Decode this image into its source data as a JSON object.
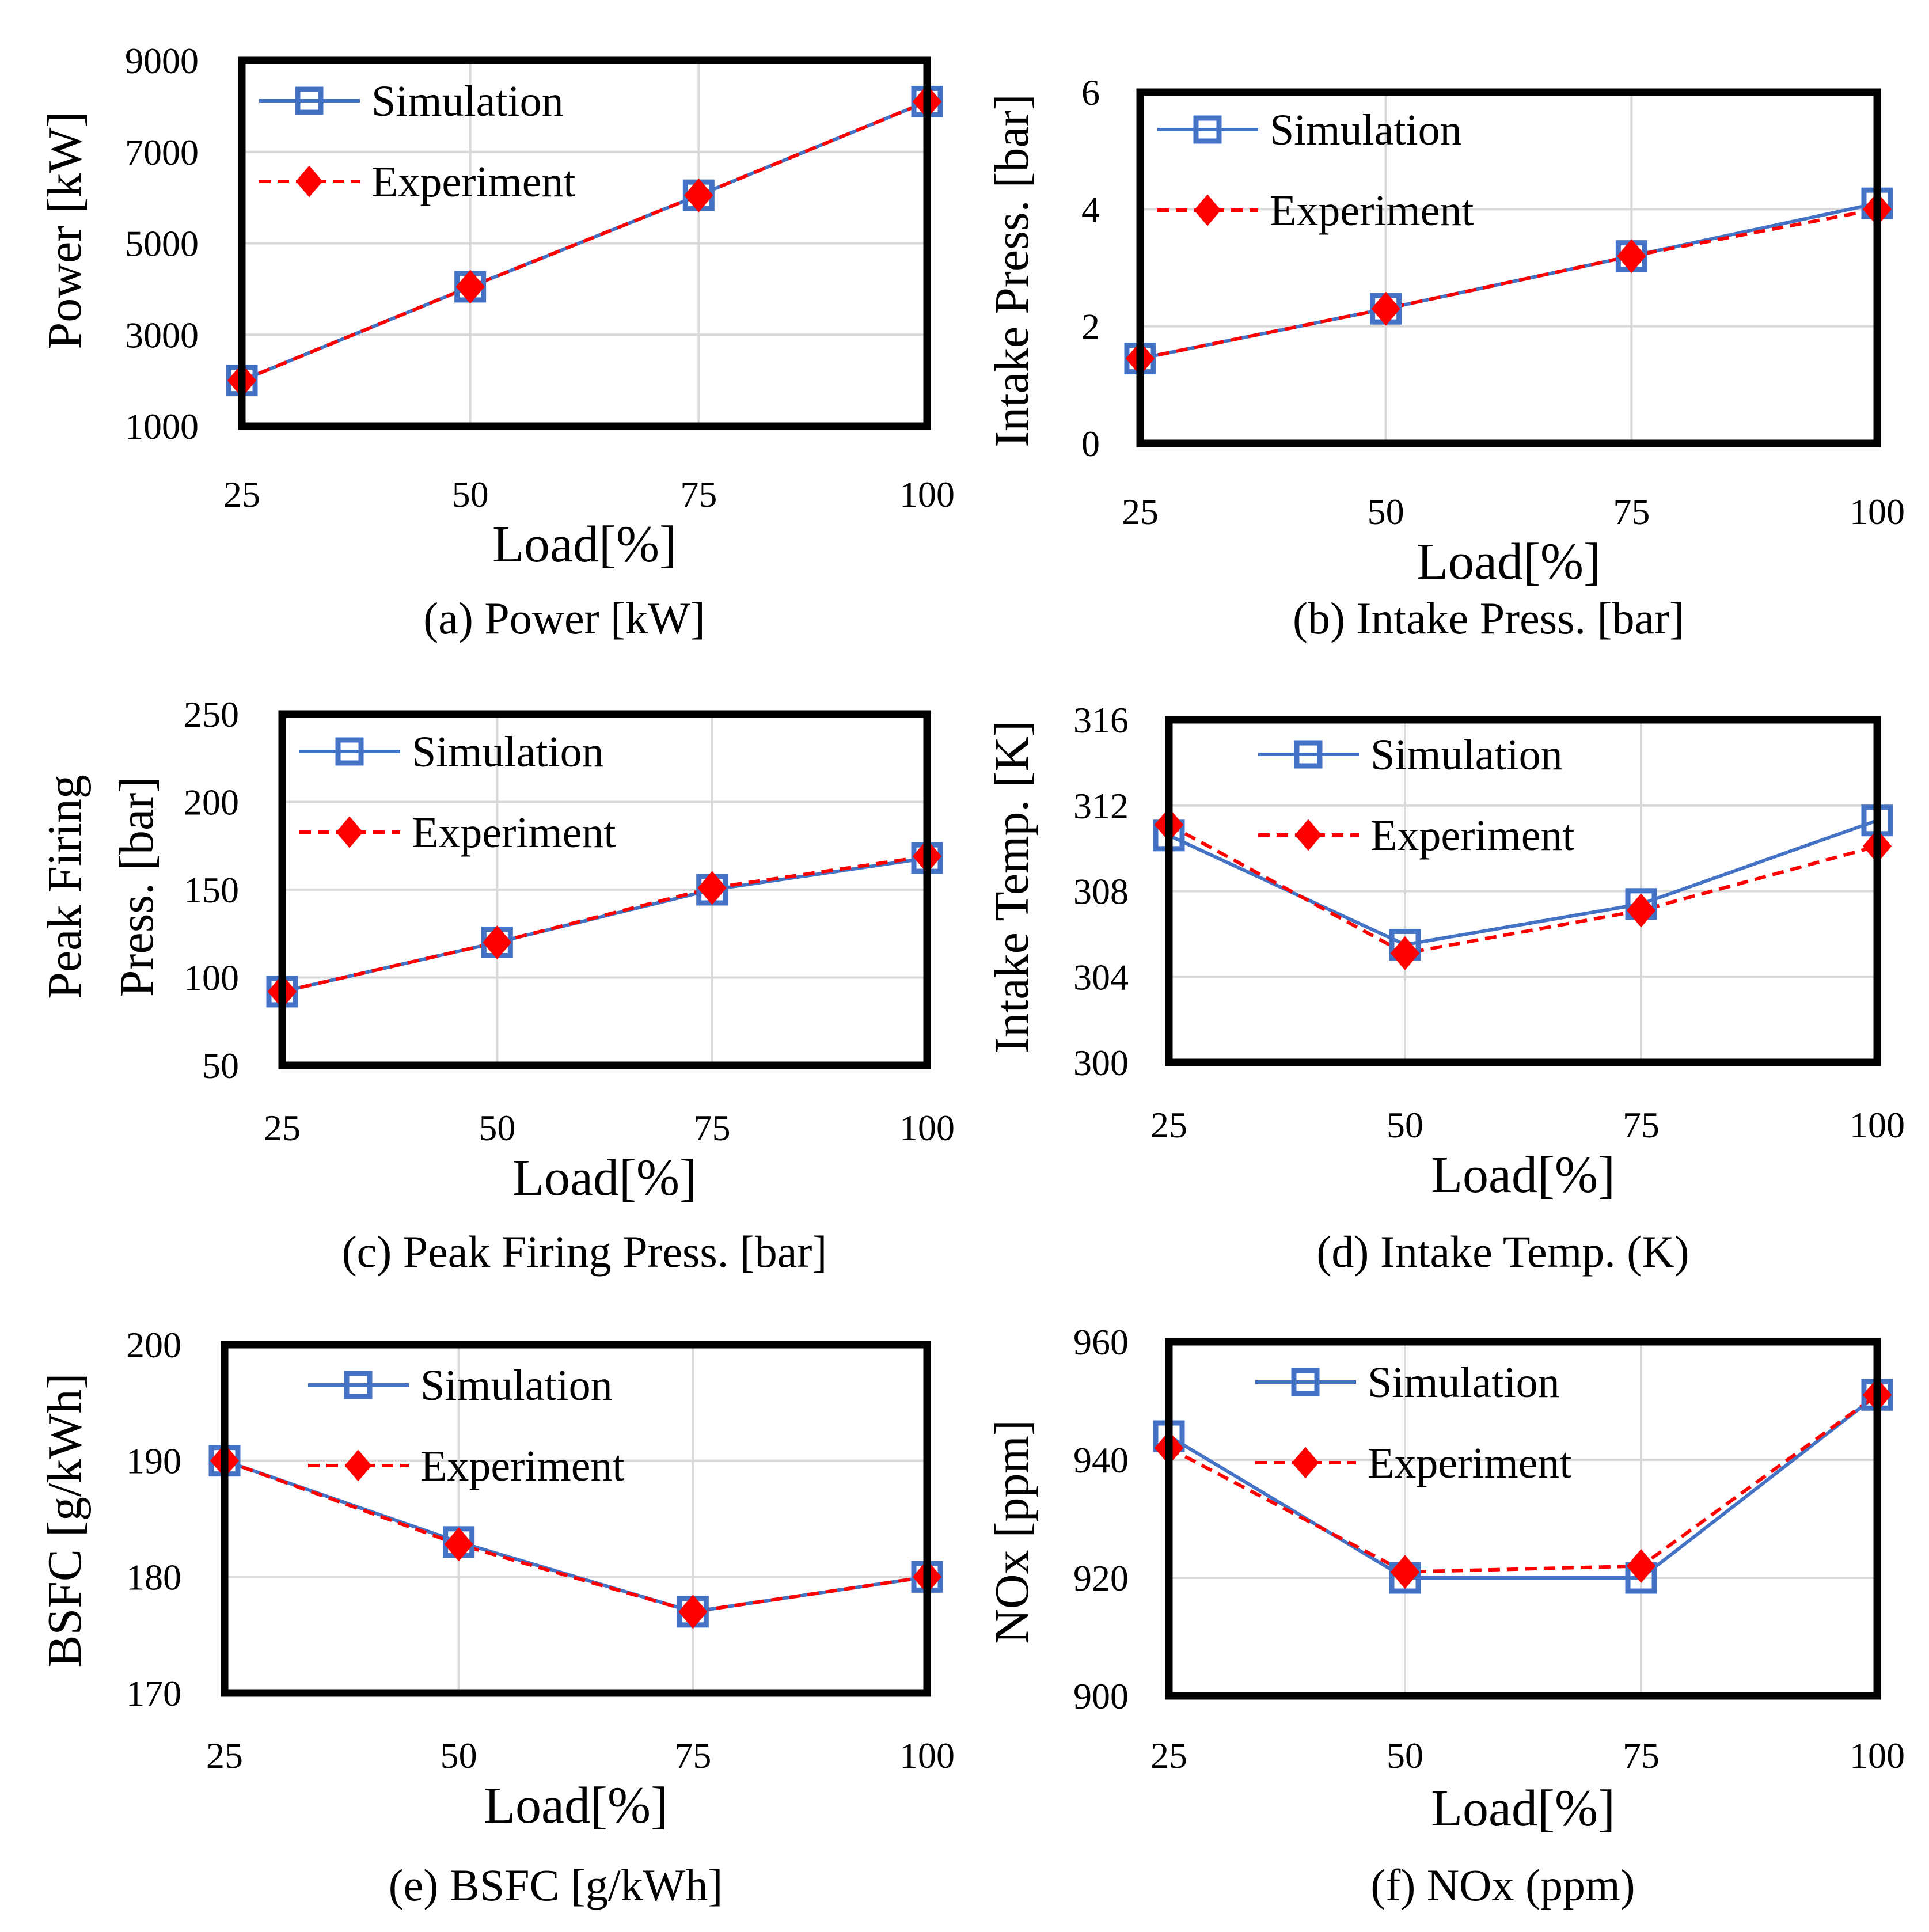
{
  "colors": {
    "simulation": "#4472c4",
    "experiment": "#ff0000",
    "frame": "#000000",
    "grid": "#d9d9d9"
  },
  "chart_data": [
    {
      "type": "line",
      "caption": "(a) Power [kW]",
      "ylabel": "Power [kW]",
      "xlabel": "Load[%]",
      "categories": [
        "25",
        "50",
        "75",
        "100"
      ],
      "ylim": [
        1000,
        9000
      ],
      "yticks": [
        1000,
        3000,
        5000,
        7000,
        9000
      ],
      "legend": [
        "Simulation",
        "Experiment"
      ],
      "series": [
        {
          "name": "Simulation",
          "values": [
            2000,
            4050,
            6050,
            8100
          ]
        },
        {
          "name": "Experiment",
          "values": [
            2000,
            4050,
            6050,
            8100
          ]
        }
      ]
    },
    {
      "type": "line",
      "caption": "(b) Intake Press. [bar]",
      "ylabel": "Intake Press. [bar]",
      "xlabel": "Load[%]",
      "categories": [
        "25",
        "50",
        "75",
        "100"
      ],
      "ylim": [
        0,
        6
      ],
      "yticks": [
        0,
        2,
        4,
        6
      ],
      "legend": [
        "Simulation",
        "Experiment"
      ],
      "series": [
        {
          "name": "Simulation",
          "values": [
            1.45,
            2.3,
            3.2,
            4.1
          ]
        },
        {
          "name": "Experiment",
          "values": [
            1.45,
            2.3,
            3.2,
            4.0
          ]
        }
      ]
    },
    {
      "type": "line",
      "caption": "(c) Peak Firing Press. [bar]",
      "ylabel_lines": [
        "Peak Firing",
        "Press. [bar]"
      ],
      "xlabel": "Load[%]",
      "categories": [
        "25",
        "50",
        "75",
        "100"
      ],
      "ylim": [
        50,
        250
      ],
      "yticks": [
        50,
        100,
        150,
        200,
        250
      ],
      "legend": [
        "Simulation",
        "Experiment"
      ],
      "series": [
        {
          "name": "Simulation",
          "values": [
            92,
            120,
            150,
            168
          ]
        },
        {
          "name": "Experiment",
          "values": [
            92,
            120,
            151,
            169
          ]
        }
      ]
    },
    {
      "type": "line",
      "caption": "(d) Intake Temp. (K)",
      "ylabel": "Intake Temp. [K]",
      "xlabel": "Load[%]",
      "categories": [
        "25",
        "50",
        "75",
        "100"
      ],
      "ylim": [
        300,
        316
      ],
      "yticks": [
        300,
        304,
        308,
        312,
        316
      ],
      "legend": [
        "Simulation",
        "Experiment"
      ],
      "series": [
        {
          "name": "Simulation",
          "values": [
            310.6,
            305.5,
            307.4,
            311.3
          ]
        },
        {
          "name": "Experiment",
          "values": [
            311.1,
            305.1,
            307.1,
            310.1
          ]
        }
      ]
    },
    {
      "type": "line",
      "caption": "(e) BSFC [g/kWh]",
      "ylabel": "BSFC [g/kWh]",
      "xlabel": "Load[%]",
      "categories": [
        "25",
        "50",
        "75",
        "100"
      ],
      "ylim": [
        170,
        200
      ],
      "yticks": [
        170,
        180,
        190,
        200
      ],
      "legend": [
        "Simulation",
        "Experiment"
      ],
      "series": [
        {
          "name": "Simulation",
          "values": [
            190,
            183,
            177,
            180
          ]
        },
        {
          "name": "Experiment",
          "values": [
            190,
            182.8,
            177,
            180
          ]
        }
      ]
    },
    {
      "type": "line",
      "caption": "(f) NOx (ppm)",
      "ylabel": "NOx [ppm]",
      "xlabel": "Load[%]",
      "categories": [
        "25",
        "50",
        "75",
        "100"
      ],
      "ylim": [
        900,
        960
      ],
      "yticks": [
        900,
        920,
        940,
        960
      ],
      "legend": [
        "Simulation",
        "Experiment"
      ],
      "series": [
        {
          "name": "Simulation",
          "values": [
            944,
            920,
            920,
            951
          ]
        },
        {
          "name": "Experiment",
          "values": [
            942,
            921,
            922,
            951
          ]
        }
      ]
    }
  ]
}
